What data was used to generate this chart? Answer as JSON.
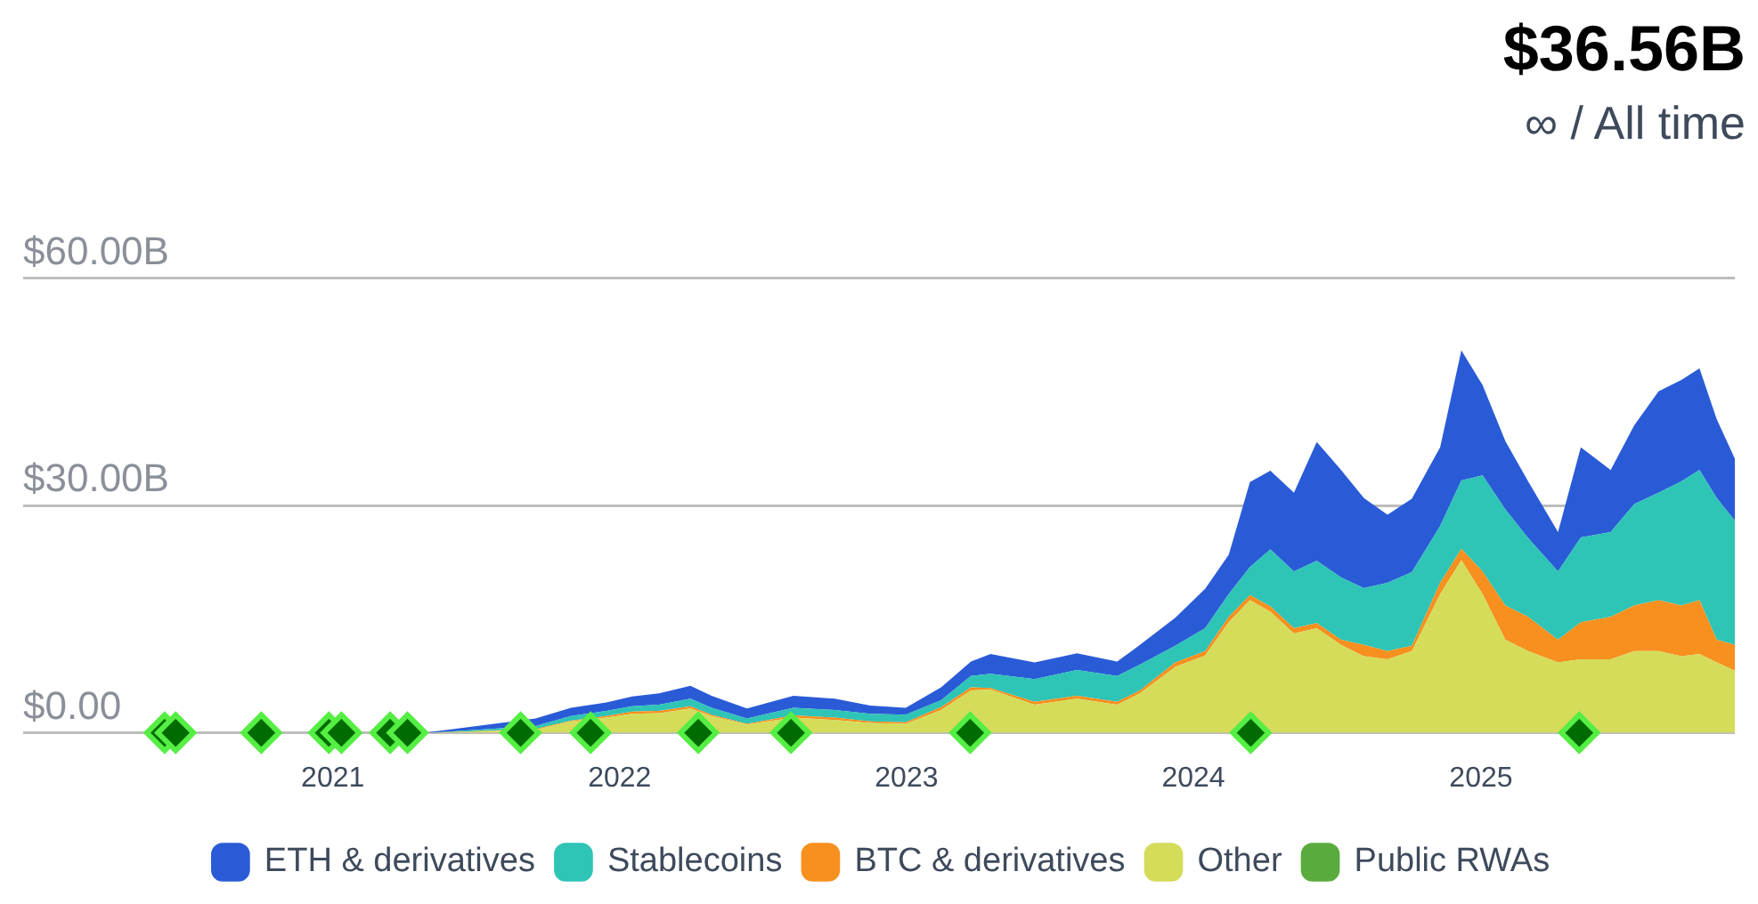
{
  "chart_data": {
    "type": "area",
    "title": "$36.56B",
    "subtitle": "∞ / All time",
    "stacked": true,
    "grid": "y",
    "legend": "bottom",
    "xlim": [
      "2019-12-04",
      "2025-11-20"
    ],
    "ylim": [
      0,
      60
    ],
    "xticks": [
      "2021",
      "2022",
      "2023",
      "2024",
      "2025"
    ],
    "yticks": [
      {
        "value": 0,
        "label": "$0.00"
      },
      {
        "value": 30,
        "label": "$30.00B"
      },
      {
        "value": 60,
        "label": "$60.00B"
      }
    ],
    "x": [
      "2021-05-04",
      "2021-09-16",
      "2021-10-31",
      "2021-12-15",
      "2022-01-17",
      "2022-02-20",
      "2022-04-01",
      "2022-04-28",
      "2022-06-12",
      "2022-08-10",
      "2022-10-02",
      "2022-11-16",
      "2022-12-31",
      "2023-02-14",
      "2023-03-24",
      "2023-04-18",
      "2023-06-13",
      "2023-08-06",
      "2023-09-26",
      "2023-10-25",
      "2023-12-09",
      "2024-01-16",
      "2024-02-15",
      "2024-03-13",
      "2024-04-08",
      "2024-05-08",
      "2024-06-06",
      "2024-07-07",
      "2024-08-05",
      "2024-09-04",
      "2024-10-05",
      "2024-11-10",
      "2024-12-07",
      "2025-01-03",
      "2025-02-01",
      "2025-03-02",
      "2025-04-09",
      "2025-05-08",
      "2025-06-15",
      "2025-07-15",
      "2025-08-15",
      "2025-09-13",
      "2025-10-06",
      "2025-10-28",
      "2025-11-20"
    ],
    "series": [
      {
        "name": "Public RWAs",
        "color": "#5aab3e",
        "values": [
          null,
          null,
          null,
          null,
          null,
          null,
          null,
          null,
          null,
          null,
          null,
          null,
          null,
          null,
          null,
          null,
          null,
          null,
          null,
          null,
          null,
          null,
          null,
          null,
          null,
          null,
          null,
          null,
          null,
          null,
          null,
          null,
          null,
          null,
          null,
          null,
          null,
          null,
          null,
          null,
          null,
          null,
          null,
          null,
          null
        ]
      },
      {
        "name": "Other",
        "color": "#d4dc5a",
        "values": [
          0,
          0.4,
          1.5,
          2.0,
          2.5,
          2.6,
          3.2,
          2.2,
          1.1,
          2.0,
          1.7,
          1.3,
          1.2,
          3.0,
          5.6,
          5.7,
          3.7,
          4.5,
          3.7,
          5.2,
          8.7,
          10.2,
          14.6,
          17.5,
          16.0,
          13.1,
          13.8,
          11.6,
          10.1,
          9.7,
          10.8,
          18.3,
          22.8,
          18.3,
          12.3,
          10.8,
          9.3,
          9.7,
          9.7,
          10.8,
          10.8,
          10.1,
          10.4,
          9.3,
          8.2
        ]
      },
      {
        "name": "BTC & derivatives",
        "color": "#f7901e",
        "values": [
          0,
          0.1,
          0.1,
          0.2,
          0.3,
          0.3,
          0.3,
          0.2,
          0.1,
          0.3,
          0.3,
          0.2,
          0.2,
          0.4,
          0.4,
          0.2,
          0.4,
          0.4,
          0.4,
          0.4,
          0.6,
          0.6,
          0.7,
          0.7,
          0.7,
          0.7,
          0.7,
          0.7,
          1.5,
          1.1,
          0.7,
          1.5,
          1.5,
          3.0,
          4.5,
          4.5,
          3.0,
          4.9,
          5.6,
          6.0,
          6.7,
          6.7,
          7.1,
          3.0,
          3.4
        ]
      },
      {
        "name": "Stablecoins",
        "color": "#2ec4b6",
        "values": [
          0,
          0.4,
          0.6,
          0.7,
          0.7,
          0.8,
          1.0,
          0.9,
          0.7,
          1.0,
          1.0,
          1.0,
          1.0,
          0.9,
          1.5,
          1.9,
          3.0,
          3.4,
          3.4,
          3.4,
          2.2,
          3.0,
          3.0,
          3.7,
          7.5,
          7.5,
          8.2,
          8.2,
          7.5,
          9.0,
          9.7,
          7.5,
          9.0,
          12.7,
          12.7,
          10.4,
          9.0,
          11.2,
          11.2,
          13.4,
          14.2,
          16.4,
          17.2,
          18.7,
          16.4
        ]
      },
      {
        "name": "ETH & derivatives",
        "color": "#2a5bd7",
        "values": [
          0.1,
          1.0,
          1.1,
          1.1,
          1.3,
          1.5,
          1.7,
          1.6,
          1.3,
          1.6,
          1.5,
          1.1,
          0.9,
          1.7,
          1.9,
          2.6,
          2.2,
          2.2,
          1.9,
          2.6,
          3.7,
          5.2,
          5.2,
          11.2,
          10.4,
          10.4,
          15.7,
          14.2,
          11.9,
          9.0,
          9.7,
          10.4,
          17.2,
          11.9,
          9.0,
          7.5,
          5.2,
          11.9,
          8.2,
          10.4,
          13.4,
          13.4,
          13.4,
          10.4,
          8.2
        ]
      },
      {
        "type": "scatter",
        "marker": "diamond",
        "color": "#006b00",
        "x": [
          "2020-06-01",
          "2020-06-15",
          "2020-10-02",
          "2020-12-27",
          "2021-01-12",
          "2021-03-15",
          "2021-04-06",
          "2021-08-28",
          "2021-11-25",
          "2022-04-11",
          "2022-08-07",
          "2023-03-23",
          "2024-03-14",
          "2025-05-06"
        ],
        "values": [
          0,
          0,
          0,
          0,
          0,
          0,
          0,
          0,
          0,
          0,
          0,
          0,
          0,
          0
        ]
      }
    ]
  }
}
